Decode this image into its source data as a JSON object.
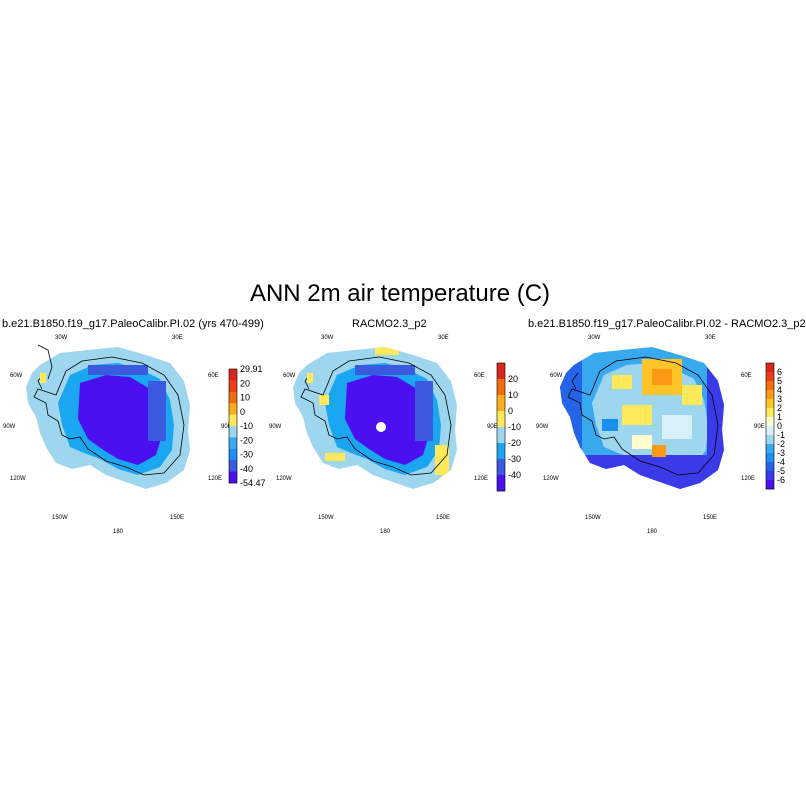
{
  "figure_title": "ANN 2m air temperature (C)",
  "panels": [
    {
      "title": "b.e21.B1850.f19_g17.PaleoCalibr.PI.02 (yrs 470-499)",
      "colorbar": {
        "labels": [
          "29.91",
          "20",
          "10",
          "0",
          "-10",
          "-20",
          "-30",
          "-40",
          "-54.47"
        ],
        "colors": [
          "#d7261e",
          "#ef3b1b",
          "#f46d10",
          "#fdae1a",
          "#fde95a",
          "#9fd6ef",
          "#39a9ef",
          "#1a8ff0",
          "#3b5ae0",
          "#4b10f0"
        ]
      }
    },
    {
      "title": "RACMO2.3_p2",
      "colorbar": {
        "labels": [
          "20",
          "10",
          "0",
          "-10",
          "-20",
          "-30",
          "-40"
        ],
        "colors": [
          "#d7261e",
          "#f46d10",
          "#fdae1a",
          "#fde95a",
          "#9fd6ef",
          "#1aa6f0",
          "#3b5ae0",
          "#4b10f0"
        ]
      }
    },
    {
      "title": "b.e21.B1850.f19_g17.PaleoCalibr.PI.02 - RACMO2.3_p2",
      "colorbar": {
        "labels": [
          "6",
          "5",
          "4",
          "3",
          "2",
          "1",
          "0",
          "-1",
          "-2",
          "-3",
          "-4",
          "-5",
          "-6"
        ],
        "colors": [
          "#d7261e",
          "#ef3b1b",
          "#f46d10",
          "#fa9a14",
          "#fdc42a",
          "#fde95a",
          "#fffdd0",
          "#d8f0fa",
          "#9fd6ef",
          "#39a9ef",
          "#1a8ff0",
          "#2563e8",
          "#3b3ae8",
          "#4b10f0"
        ]
      }
    }
  ],
  "longitude_labels": [
    "30W",
    "30E",
    "60W",
    "60E",
    "90W",
    "90E",
    "120W",
    "120E",
    "150W",
    "150E",
    "180"
  ]
}
